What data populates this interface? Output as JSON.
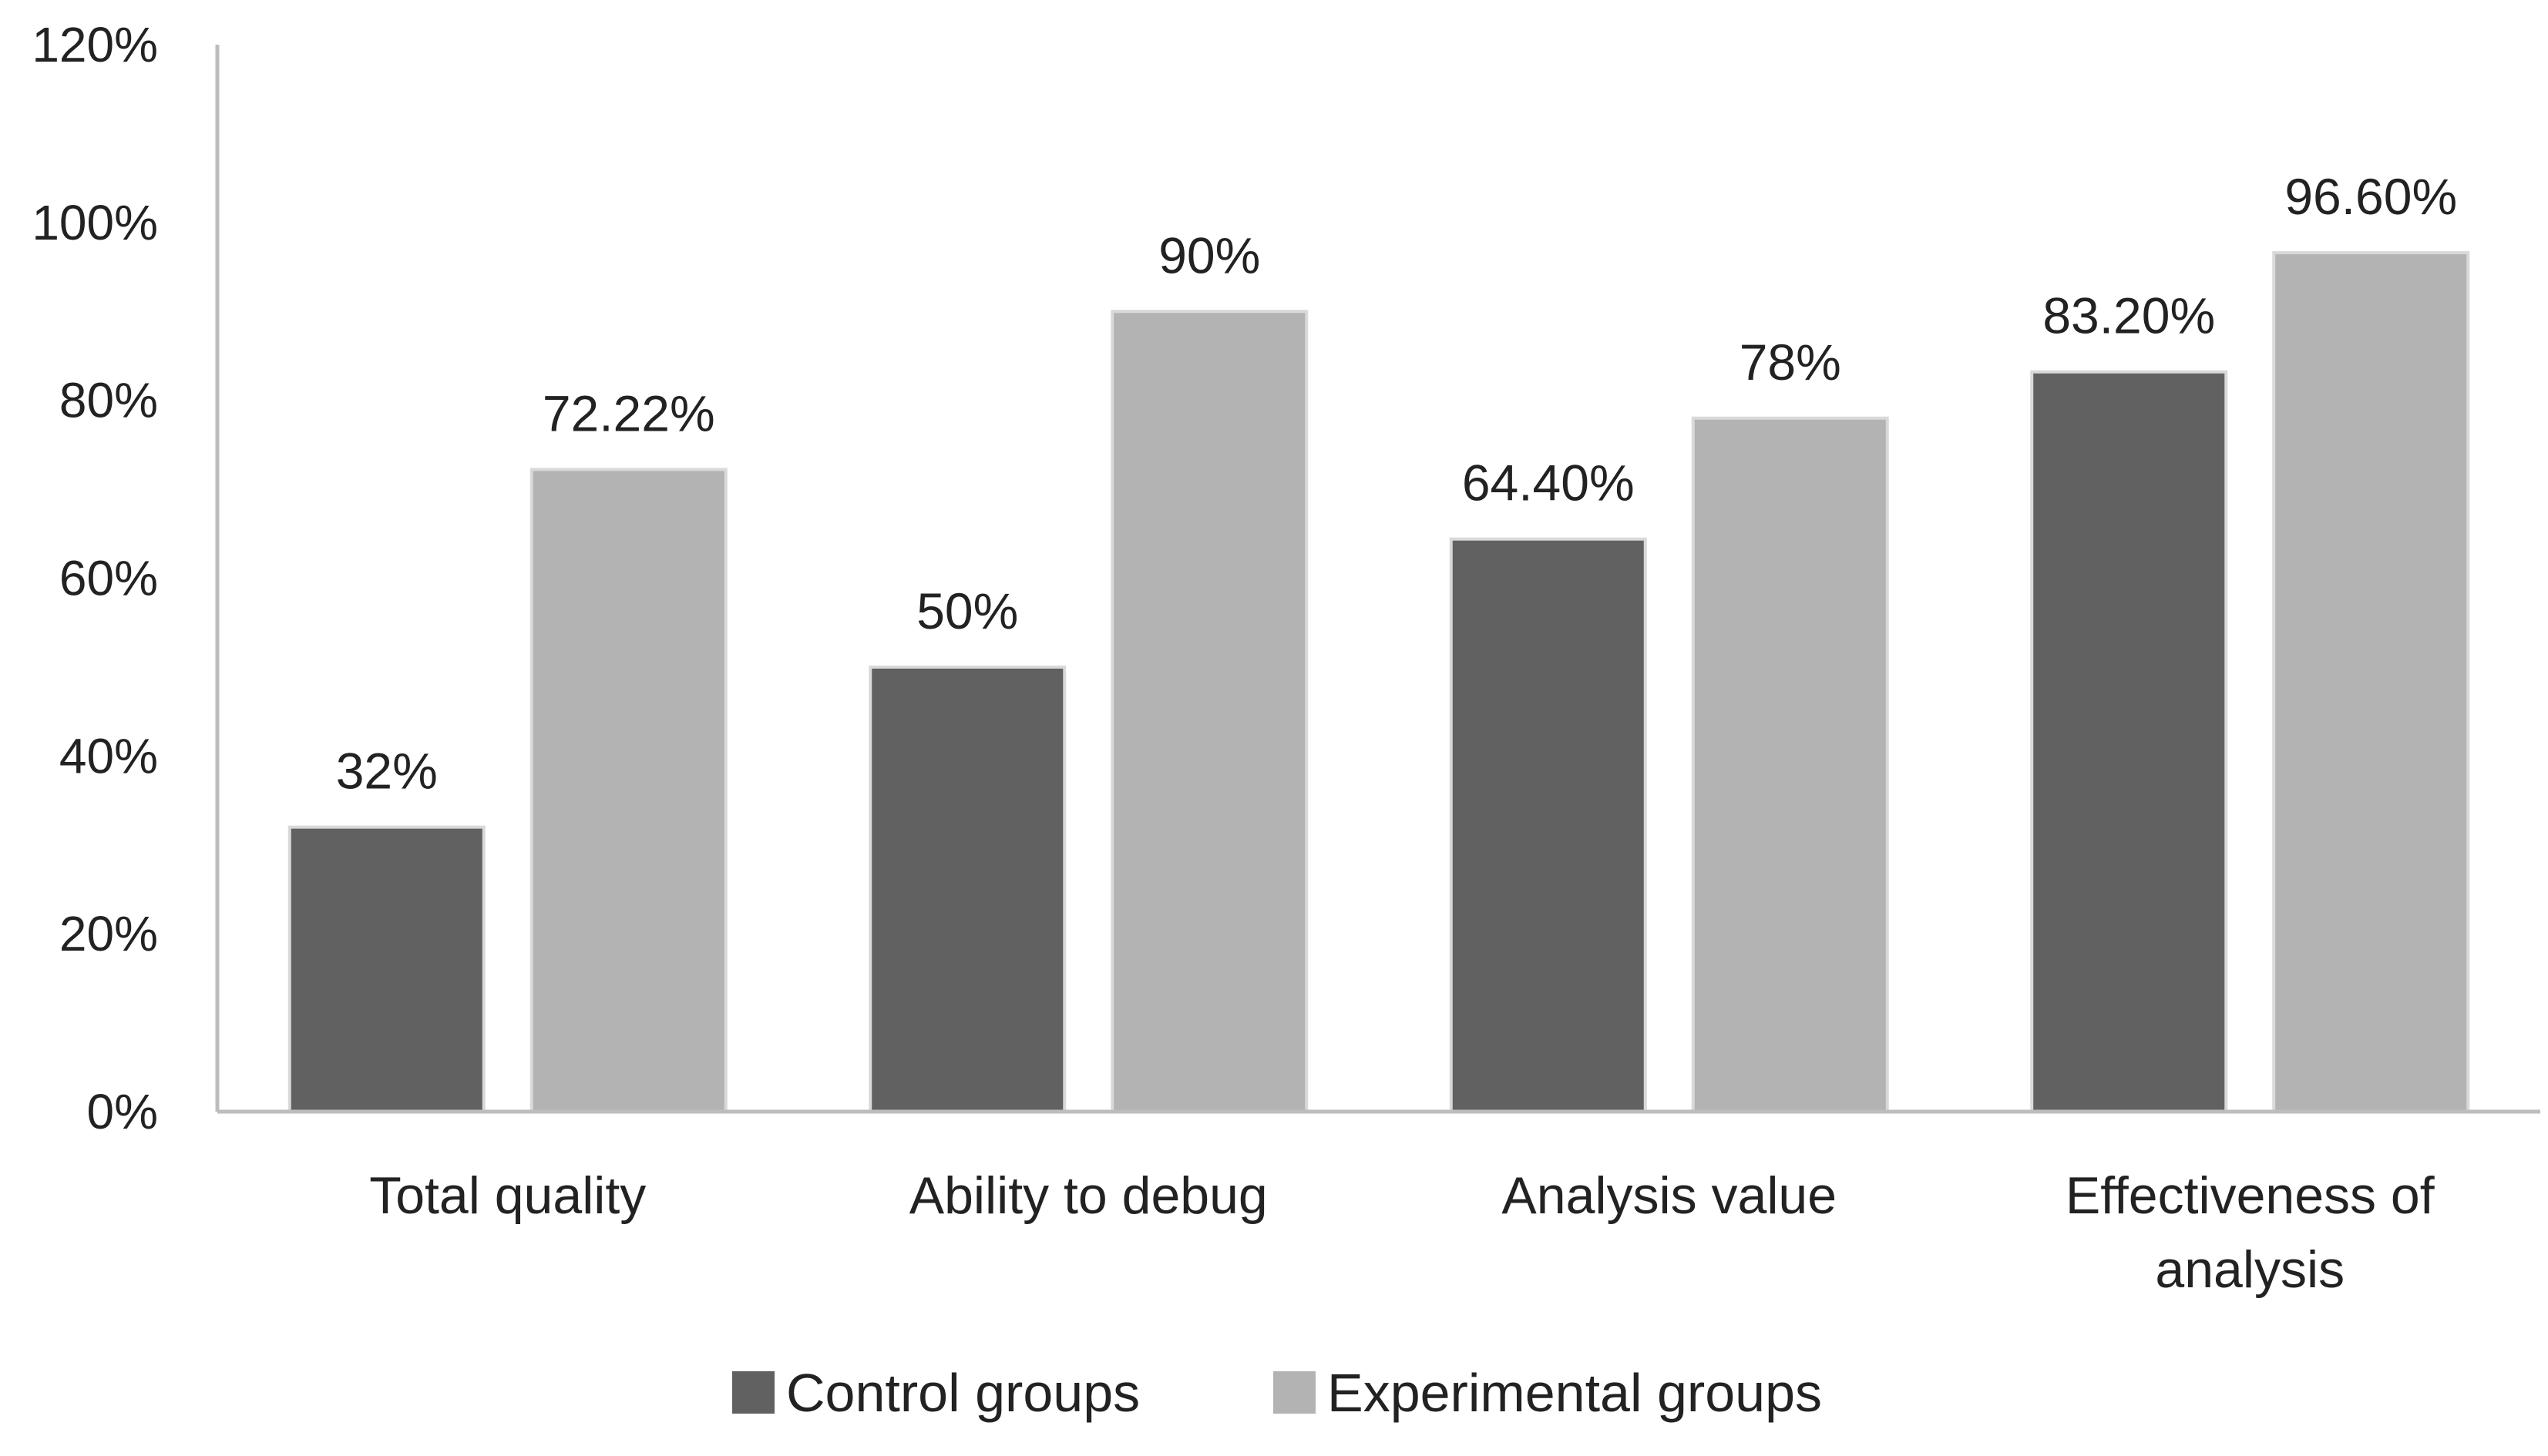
{
  "chart_data": {
    "type": "bar",
    "title": "",
    "xlabel": "",
    "ylabel": "",
    "ylim": [
      0,
      120
    ],
    "yticks": [
      0,
      20,
      40,
      60,
      80,
      100,
      120
    ],
    "ytick_labels": [
      "0%",
      "20%",
      "40%",
      "60%",
      "80%",
      "100%",
      "120%"
    ],
    "grid": false,
    "legend_position": "bottom",
    "categories": [
      [
        "Total quality"
      ],
      [
        "Ability to debug"
      ],
      [
        "Analysis value"
      ],
      [
        "Effectiveness of",
        "analysis"
      ]
    ],
    "series": [
      {
        "name": "Control groups",
        "color": "#616161",
        "values": [
          32,
          50,
          64.4,
          83.2
        ],
        "labels": [
          "32%",
          "50%",
          "64.40%",
          "83.20%"
        ]
      },
      {
        "name": "Experimental groups",
        "color": "#b3b3b3",
        "values": [
          72.22,
          90,
          78,
          96.6
        ],
        "labels": [
          "72.22%",
          "90%",
          "78%",
          "96.60%"
        ]
      }
    ]
  }
}
